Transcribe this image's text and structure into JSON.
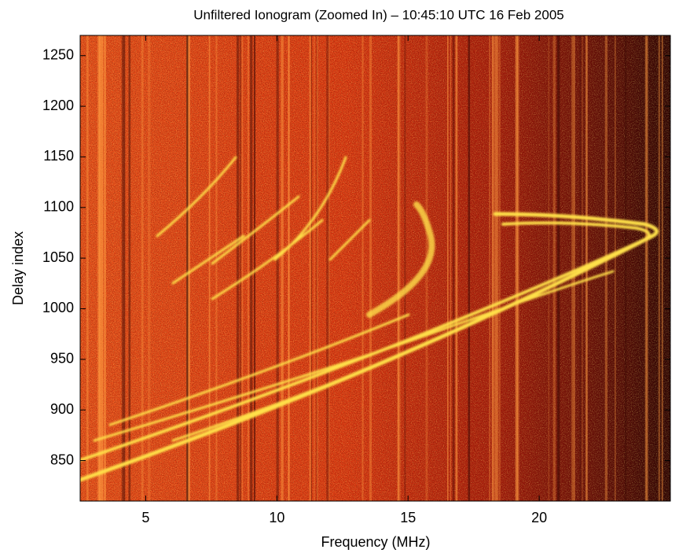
{
  "chart_data": {
    "type": "heatmap",
    "title": "Unfiltered Ionogram (Zoomed In) – 10:45:10 UTC 16 Feb 2005",
    "xlabel": "Frequency (MHz)",
    "ylabel": "Delay index",
    "xlim": [
      2.5,
      25
    ],
    "xticks": [
      5,
      10,
      15,
      20
    ],
    "ylim": [
      810,
      1270
    ],
    "yticks": [
      850,
      900,
      950,
      1000,
      1050,
      1100,
      1150,
      1200,
      1250
    ]
  }
}
